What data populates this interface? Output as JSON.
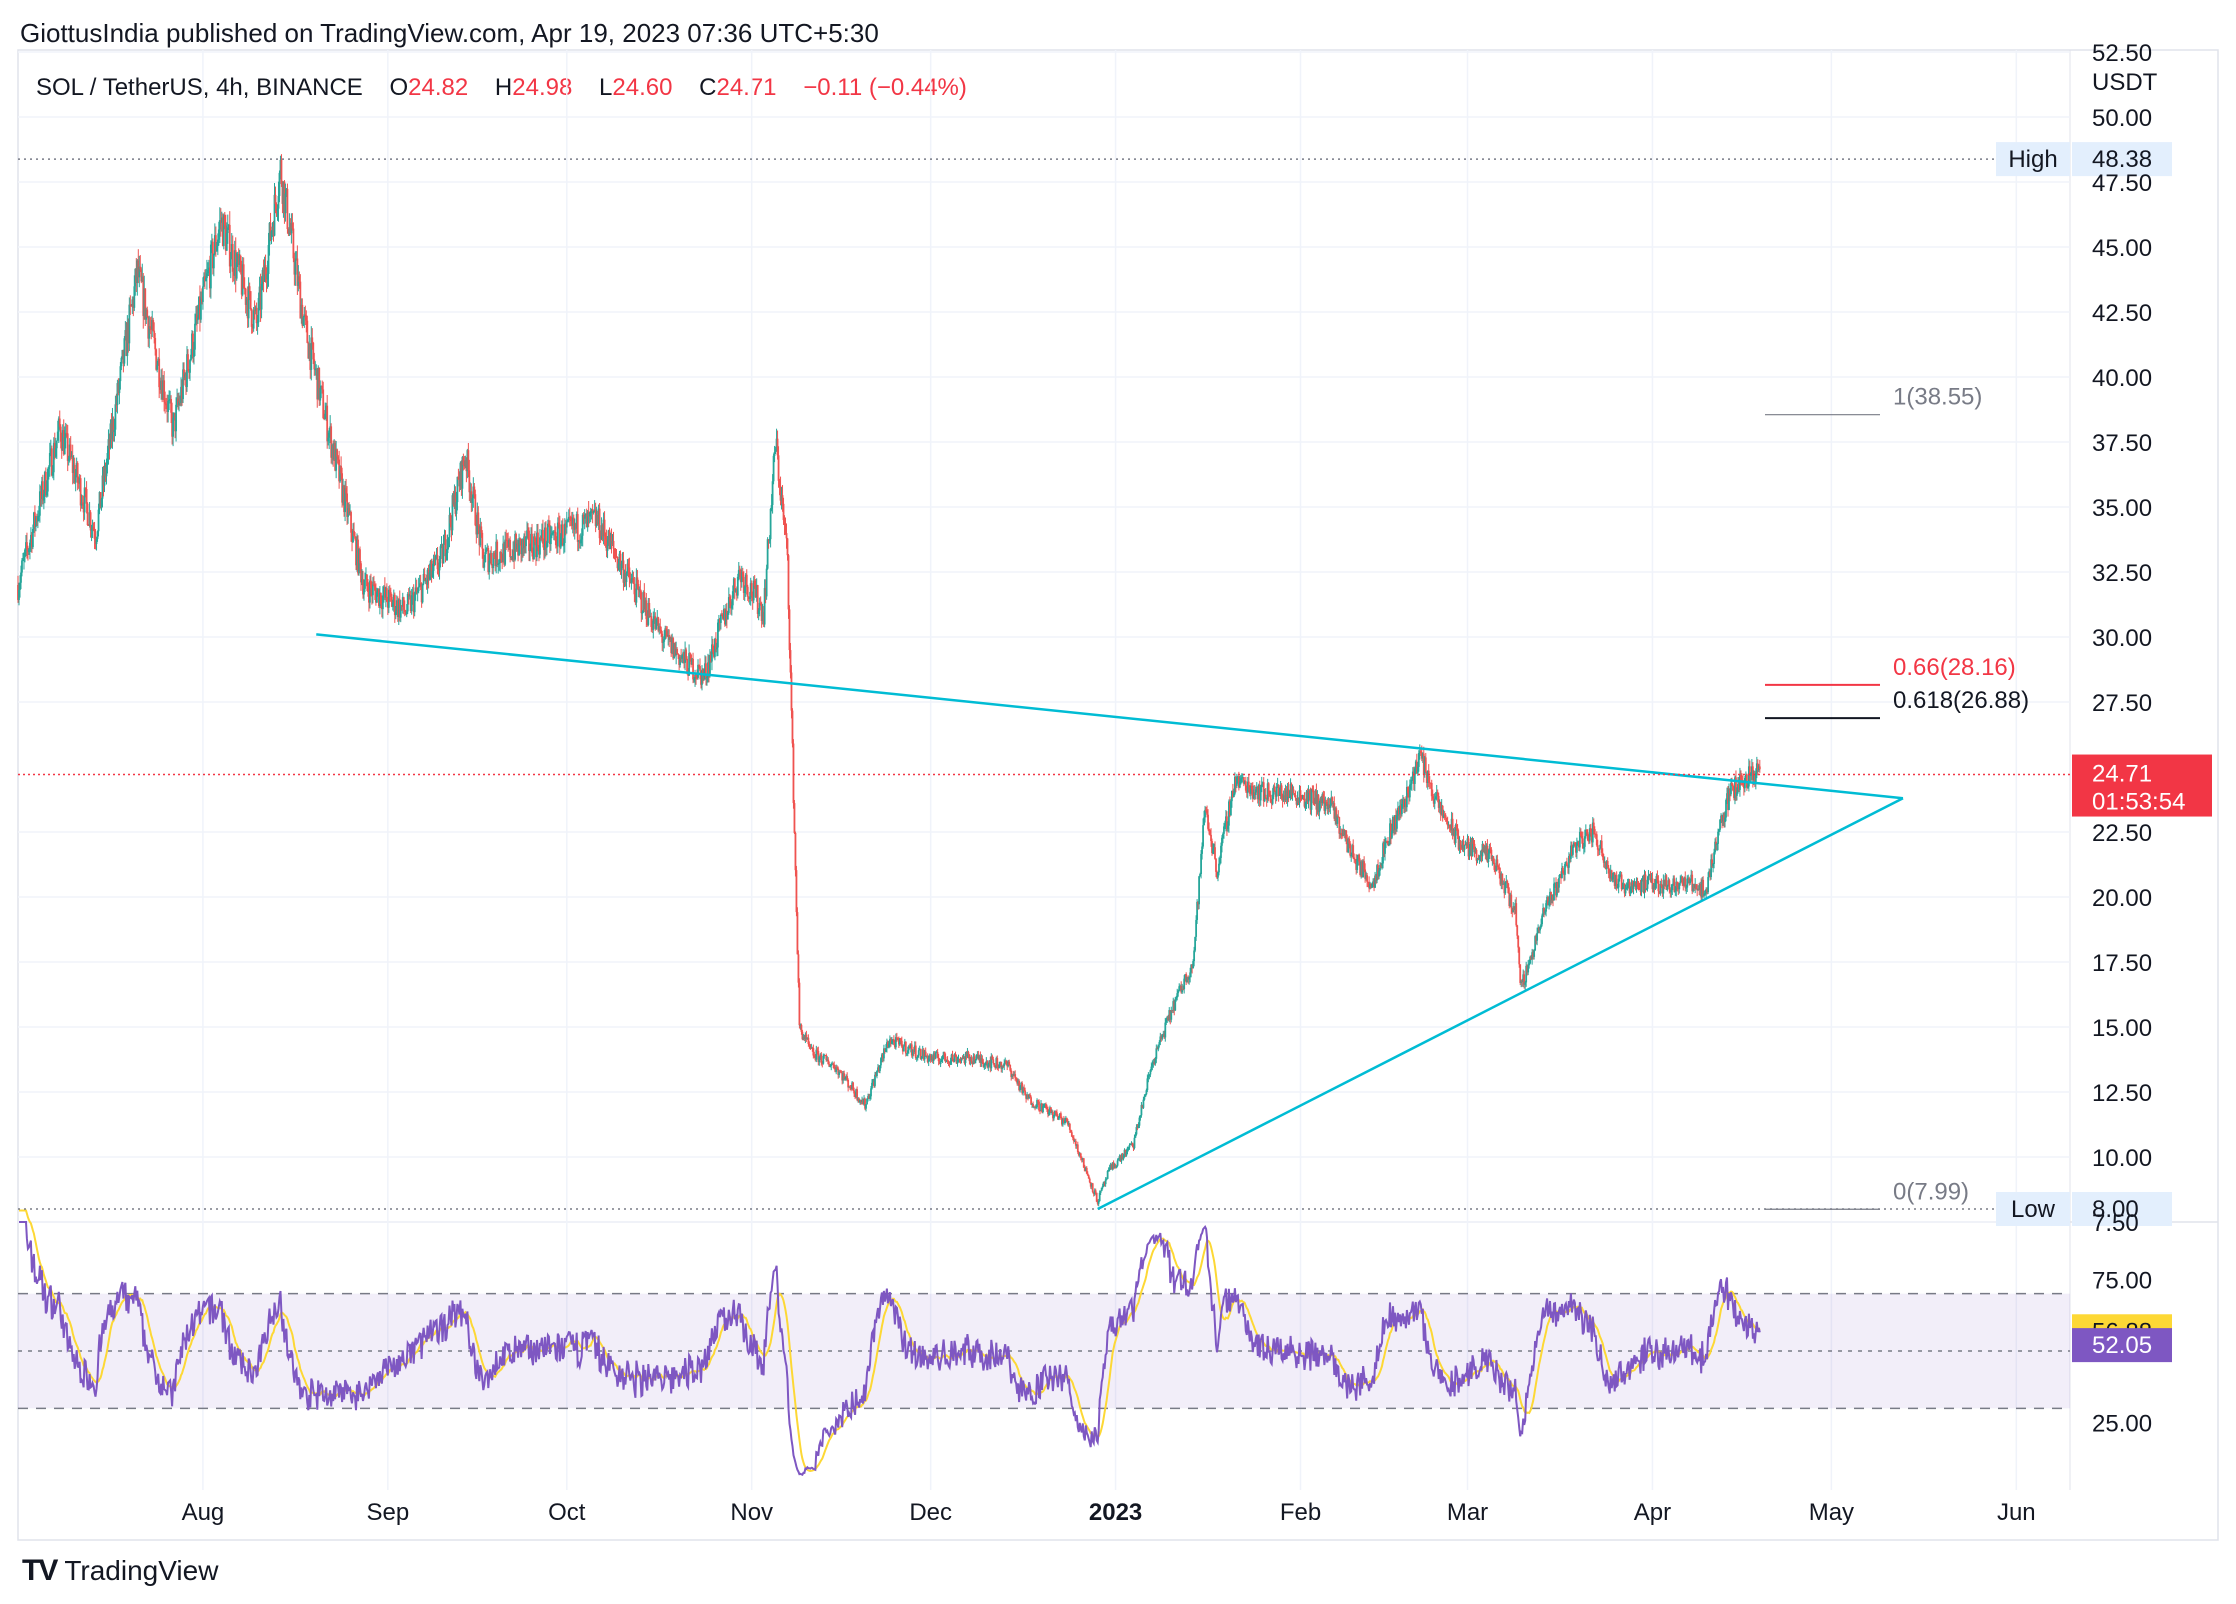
{
  "header": {
    "published": "GiottusIndia published on TradingView.com, Apr 19, 2023 07:36 UTC+5:30",
    "symbol": "SOL / TetherUS, 4h, BINANCE",
    "o_label": "O",
    "o_value": "24.82",
    "h_label": "H",
    "h_value": "24.98",
    "l_label": "L",
    "l_value": "24.60",
    "c_label": "C",
    "c_value": "24.71",
    "change": "−0.11 (−0.44%)"
  },
  "footer": {
    "logo_text": "TradingView",
    "logo_mark": "TV"
  },
  "colors": {
    "up": "#26a69a",
    "down": "#ef5350",
    "trendline": "#00bcd4",
    "rsi_line": "#7e57c2",
    "rsi_ma": "#fdd835",
    "price_badge": "#f23645",
    "fib_red": "#f23645",
    "fib_black": "#131722",
    "fib_gray": "#787b86"
  },
  "chart_data": [
    {
      "type": "candlestick",
      "currency_label": "USDT",
      "x_ticks": [
        "Aug",
        "Sep",
        "Oct",
        "Nov",
        "Dec",
        "2023",
        "Feb",
        "Mar",
        "Apr",
        "May",
        "Jun"
      ],
      "y_ticks": [
        "50.00",
        "47.50",
        "45.00",
        "42.50",
        "40.00",
        "37.50",
        "35.00",
        "32.50",
        "30.00",
        "27.50",
        "22.50",
        "20.00",
        "17.50",
        "15.00",
        "12.50",
        "10.00",
        "7.50",
        "52.50"
      ],
      "ylim": [
        7.5,
        52.5
      ],
      "x_range": [
        "2022-07-01",
        "2023-06-10"
      ],
      "price_path": [
        [
          "2022-07-01",
          32
        ],
        [
          "2022-07-08",
          38
        ],
        [
          "2022-07-14",
          34
        ],
        [
          "2022-07-21",
          44
        ],
        [
          "2022-07-27",
          38
        ],
        [
          "2022-08-04",
          46
        ],
        [
          "2022-08-10",
          42
        ],
        [
          "2022-08-14",
          48
        ],
        [
          "2022-08-18",
          42
        ],
        [
          "2022-08-24",
          36
        ],
        [
          "2022-08-28",
          32
        ],
        [
          "2022-09-04",
          31
        ],
        [
          "2022-09-10",
          33
        ],
        [
          "2022-09-14",
          37
        ],
        [
          "2022-09-17",
          33
        ],
        [
          "2022-09-24",
          33.5
        ],
        [
          "2022-10-01",
          34
        ],
        [
          "2022-10-06",
          34.5
        ],
        [
          "2022-10-12",
          32
        ],
        [
          "2022-10-17",
          30
        ],
        [
          "2022-10-21",
          29
        ],
        [
          "2022-10-24",
          28.5
        ],
        [
          "2022-10-30",
          32.5
        ],
        [
          "2022-11-03",
          31
        ],
        [
          "2022-11-05",
          37.5
        ],
        [
          "2022-11-07",
          33
        ],
        [
          "2022-11-08",
          24
        ],
        [
          "2022-11-09",
          15
        ],
        [
          "2022-11-11",
          14
        ],
        [
          "2022-11-15",
          13.5
        ],
        [
          "2022-11-20",
          12
        ],
        [
          "2022-11-24",
          14.5
        ],
        [
          "2022-12-01",
          13.8
        ],
        [
          "2022-12-08",
          13.8
        ],
        [
          "2022-12-14",
          13.5
        ],
        [
          "2022-12-17",
          12.3
        ],
        [
          "2022-12-24",
          11.3
        ],
        [
          "2022-12-29",
          8.3
        ],
        [
          "2022-12-31",
          9.5
        ],
        [
          "2023-01-04",
          10.5
        ],
        [
          "2023-01-07",
          13.5
        ],
        [
          "2023-01-11",
          16
        ],
        [
          "2023-01-14",
          17.5
        ],
        [
          "2023-01-16",
          23.5
        ],
        [
          "2023-01-18",
          21
        ],
        [
          "2023-01-21",
          24.5
        ],
        [
          "2023-01-26",
          24
        ],
        [
          "2023-01-31",
          24
        ],
        [
          "2023-02-06",
          23.5
        ],
        [
          "2023-02-10",
          21.5
        ],
        [
          "2023-02-13",
          20.5
        ],
        [
          "2023-02-16",
          22.5
        ],
        [
          "2023-02-19",
          24
        ],
        [
          "2023-02-21",
          25.5
        ],
        [
          "2023-02-24",
          23.5
        ],
        [
          "2023-02-28",
          22
        ],
        [
          "2023-03-05",
          21.5
        ],
        [
          "2023-03-09",
          19.5
        ],
        [
          "2023-03-10",
          16.5
        ],
        [
          "2023-03-14",
          19.5
        ],
        [
          "2023-03-19",
          22
        ],
        [
          "2023-03-22",
          22.5
        ],
        [
          "2023-03-26",
          20.5
        ],
        [
          "2023-04-01",
          20.5
        ],
        [
          "2023-04-08",
          20.5
        ],
        [
          "2023-04-10",
          20.2
        ],
        [
          "2023-04-12",
          22.5
        ],
        [
          "2023-04-14",
          24
        ],
        [
          "2023-04-16",
          24.5
        ],
        [
          "2023-04-18",
          24.8
        ],
        [
          "2023-04-19",
          24.71
        ]
      ],
      "high_label": "High",
      "high_value": "48.38",
      "low_label": "Low",
      "low_value": "8.00",
      "last_price": "24.71",
      "countdown": "01:53:54",
      "fib_levels": [
        {
          "label": "1(38.55)",
          "value": 38.55,
          "color": "gray"
        },
        {
          "label": "0.66(28.16)",
          "value": 28.16,
          "color": "red"
        },
        {
          "label": "0.618(26.88)",
          "value": 26.88,
          "color": "black"
        },
        {
          "label": "0(7.99)",
          "value": 7.99,
          "color": "gray"
        }
      ],
      "trendlines": [
        {
          "name": "upper",
          "from": [
            "2022-08-20",
            30.1
          ],
          "to": [
            "2023-05-13",
            23.8
          ]
        },
        {
          "name": "lower",
          "from": [
            "2022-12-29",
            8.0
          ],
          "to": [
            "2023-05-13",
            23.8
          ]
        }
      ]
    },
    {
      "type": "line",
      "indicator": "RSI",
      "ylim": [
        5,
        95
      ],
      "y_ticks": [
        "75.00",
        "25.00"
      ],
      "bands": [
        30,
        50,
        70
      ],
      "rsi_value": "52.05",
      "ma_value": "56.88"
    }
  ]
}
